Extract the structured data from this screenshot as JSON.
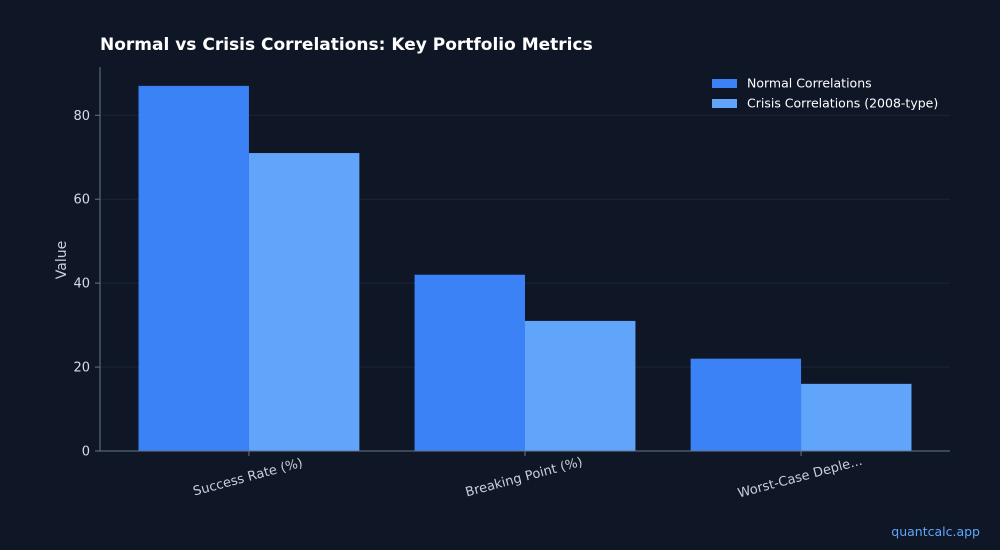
{
  "chart_data": {
    "type": "bar",
    "title": "Normal vs Crisis Correlations: Key Portfolio Metrics",
    "xlabel": "",
    "ylabel": "Value",
    "ylim": [
      0,
      91.5
    ],
    "yticks": [
      0,
      20,
      40,
      60,
      80
    ],
    "categories": [
      "Success Rate (%)",
      "Breaking Point (%)",
      "Worst-Case Deple..."
    ],
    "series": [
      {
        "name": "Normal Correlations",
        "color": "#3b82f6",
        "values": [
          87,
          42,
          22
        ]
      },
      {
        "name": "Crisis Correlations (2008-type)",
        "color": "#60a5fa",
        "values": [
          71,
          31,
          16
        ]
      }
    ],
    "grid": true,
    "legend_position": "top-right"
  },
  "watermark": "quantcalc.app"
}
